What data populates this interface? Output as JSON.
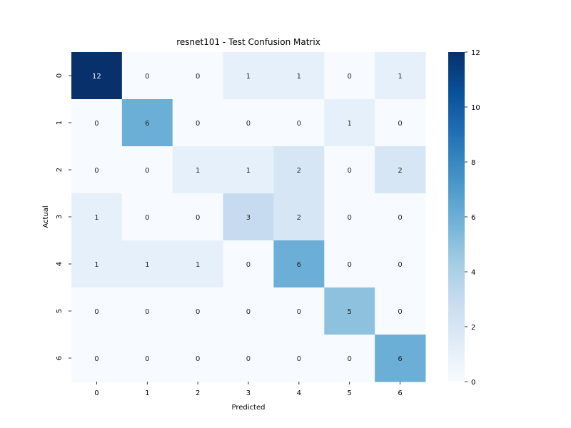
{
  "chart_data": {
    "type": "heatmap",
    "title": "resnet101 - Test Confusion Matrix",
    "xlabel": "Predicted",
    "ylabel": "Actual",
    "x_categories": [
      "0",
      "1",
      "2",
      "3",
      "4",
      "5",
      "6"
    ],
    "y_categories": [
      "0",
      "1",
      "2",
      "3",
      "4",
      "5",
      "6"
    ],
    "matrix": [
      [
        12,
        0,
        0,
        1,
        1,
        0,
        1
      ],
      [
        0,
        6,
        0,
        0,
        0,
        1,
        0
      ],
      [
        0,
        0,
        1,
        1,
        2,
        0,
        2
      ],
      [
        1,
        0,
        0,
        3,
        2,
        0,
        0
      ],
      [
        1,
        1,
        1,
        0,
        6,
        0,
        0
      ],
      [
        0,
        0,
        0,
        0,
        0,
        5,
        0
      ],
      [
        0,
        0,
        0,
        0,
        0,
        0,
        6
      ]
    ],
    "colormap": "Blues",
    "color_range": [
      0,
      12
    ],
    "colorbar_ticks": [
      0,
      2,
      4,
      6,
      8,
      10,
      12
    ],
    "annotations": true,
    "grid": false
  }
}
